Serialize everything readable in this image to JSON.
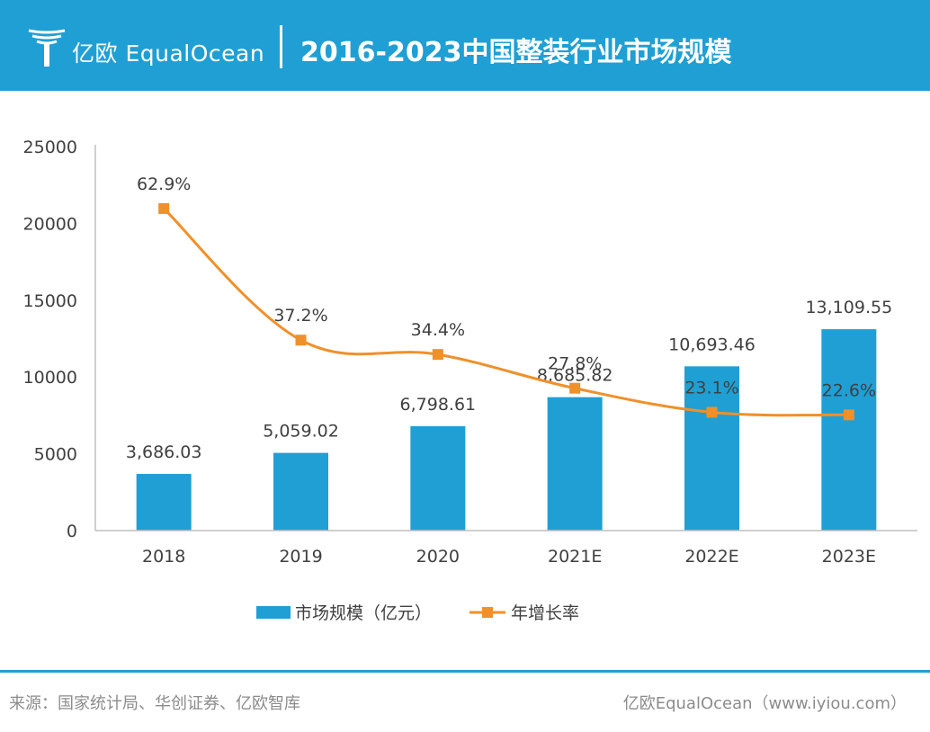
{
  "header": {
    "brand": "亿欧 EqualOcean",
    "title": "2016-2023中国整装行业市场规模",
    "background": "#1f9fd4"
  },
  "chart_data": {
    "type": "bar",
    "categories": [
      "2018",
      "2019",
      "2020",
      "2021E",
      "2022E",
      "2023E"
    ],
    "series": [
      {
        "name": "市场规模（亿元）",
        "type": "bar",
        "axis": "left",
        "color": "#1f9fd4",
        "values": [
          3686.03,
          5059.02,
          6798.61,
          8685.82,
          10693.46,
          13109.55
        ],
        "labels": [
          "3,686.03",
          "5,059.02",
          "6,798.61",
          "8,685.82",
          "10,693.46",
          "13,109.55"
        ]
      },
      {
        "name": "年增长率",
        "type": "line",
        "axis": "right-hidden",
        "color": "#f0902a",
        "values": [
          62.9,
          37.2,
          34.4,
          27.8,
          23.1,
          22.6
        ],
        "labels": [
          "62.9%",
          "37.2%",
          "34.4%",
          "27.8%",
          "23.1%",
          "22.6%"
        ]
      }
    ],
    "ylim": [
      0,
      25000
    ],
    "yticks": [
      "0",
      "5000",
      "10000",
      "15000",
      "20000",
      "25000"
    ],
    "legend_position": "bottom"
  },
  "footer": {
    "source": "来源：国家统计局、华创证券、亿欧智库",
    "credit": "亿欧EqualOcean（www.iyiou.com）"
  }
}
